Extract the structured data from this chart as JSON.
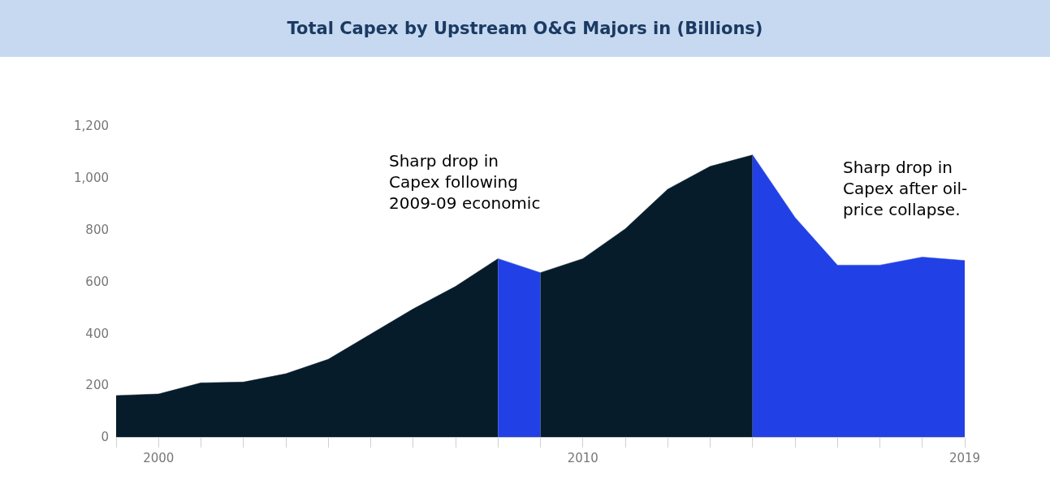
{
  "chart_data": {
    "type": "area",
    "title": "Total Capex by Upstream O&G Majors in (Billions)",
    "series": [
      {
        "color": "#061c2b",
        "x": [
          1999,
          2000,
          2001,
          2002,
          2003,
          2004,
          2005,
          2006,
          2007,
          2008
        ],
        "values": [
          160,
          166,
          209,
          212,
          244,
          300,
          397,
          494,
          581,
          688
        ]
      },
      {
        "color": "#2141e6",
        "x": [
          2008,
          2009
        ],
        "values": [
          688,
          634
        ]
      },
      {
        "color": "#061c2b",
        "x": [
          2009,
          2010,
          2011,
          2012,
          2013,
          2014
        ],
        "values": [
          634,
          688,
          803,
          956,
          1044,
          1088
        ]
      },
      {
        "color": "#2141e6",
        "x": [
          2014,
          2015,
          2016,
          2017,
          2018,
          2019
        ],
        "values": [
          1088,
          847,
          663,
          663,
          694,
          681
        ]
      }
    ],
    "xlim": [
      1999,
      2019
    ],
    "xticks": [
      {
        "value": 1999,
        "label": null
      },
      2000,
      {
        "value": 2001,
        "label": null
      },
      {
        "value": 2002,
        "label": null
      },
      {
        "value": 2003,
        "label": null
      },
      {
        "value": 2004,
        "label": null
      },
      {
        "value": 2005,
        "label": null
      },
      {
        "value": 2006,
        "label": null
      },
      {
        "value": 2007,
        "label": null
      },
      {
        "value": 2008,
        "label": null
      },
      {
        "value": 2009,
        "label": null
      },
      2010,
      {
        "value": 2011,
        "label": null
      },
      {
        "value": 2012,
        "label": null
      },
      {
        "value": 2013,
        "label": null
      },
      {
        "value": 2014,
        "label": null
      },
      {
        "value": 2015,
        "label": null
      },
      {
        "value": 2016,
        "label": null
      },
      {
        "value": 2017,
        "label": null
      },
      {
        "value": 2018,
        "label": null
      },
      2019
    ],
    "ylim": [
      0,
      1200
    ],
    "yticks": [
      0,
      200,
      400,
      600,
      800,
      {
        "value": 1000,
        "label": "1,000"
      },
      {
        "value": 1200,
        "label": "1,200"
      }
    ],
    "annotations": [
      "Sharp drop in Capex following 2009-09 economic",
      "Sharp drop in Capex after oil-price collapse."
    ]
  }
}
